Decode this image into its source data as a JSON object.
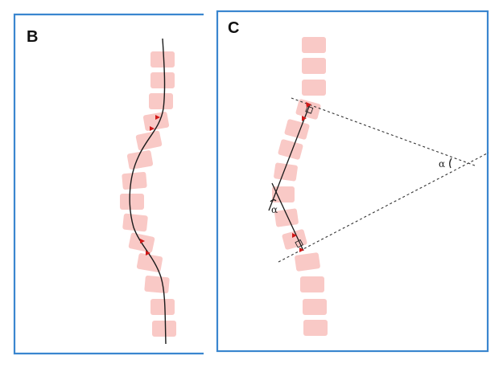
{
  "panels": {
    "b": {
      "label": "B"
    },
    "c": {
      "label": "C",
      "angle_label_right": "α",
      "angle_label_left": "α"
    }
  },
  "colors": {
    "frame": "#3a86cf",
    "vertebra": "#f9c9c6",
    "marker": "#d01818",
    "line": "#1a1a1a"
  }
}
